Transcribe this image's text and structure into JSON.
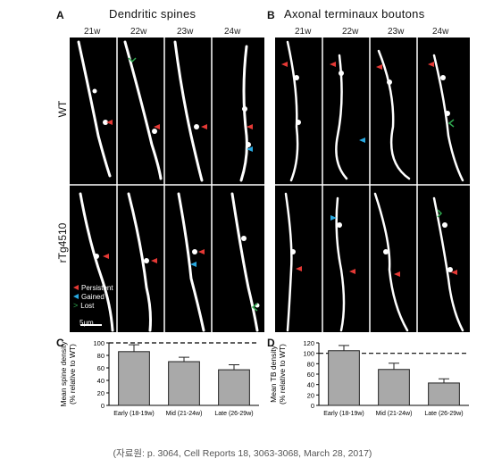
{
  "panels": {
    "A": {
      "letter": "A",
      "title": "Dendritic spines"
    },
    "B": {
      "letter": "B",
      "title": "Axonal terminaux boutons"
    },
    "C": {
      "letter": "C"
    },
    "D": {
      "letter": "D"
    }
  },
  "timepoints": [
    "21w",
    "22w",
    "23w",
    "24w"
  ],
  "rows": [
    "WT",
    "rTg4510"
  ],
  "legend": [
    {
      "label": "Persistent",
      "color": "#e53935",
      "shape": "filled-triangle"
    },
    {
      "label": "Gained",
      "color": "#29a8e0",
      "shape": "filled-triangle"
    },
    {
      "label": "Lost",
      "color": "#2fa84f",
      "shape": "open-chevron"
    }
  ],
  "scale_bar": "5μm",
  "chart_data": [
    {
      "type": "bar",
      "panel": "C",
      "categories": [
        "Early (18-19w)",
        "Mid (21-24w)",
        "Late (26-29w)"
      ],
      "values": [
        86,
        70,
        57
      ],
      "errors": [
        11,
        7,
        8
      ],
      "ylabel": "Mean spine density\n(% relative to WT)",
      "ylim": [
        0,
        100
      ],
      "yticks": [
        0,
        20,
        40,
        60,
        80,
        100
      ],
      "reference_line": 100,
      "bar_color": "#a9a9a9"
    },
    {
      "type": "bar",
      "panel": "D",
      "categories": [
        "Early (18-19w)",
        "Mid (21-24w)",
        "Late (26-29w)"
      ],
      "values": [
        105,
        69,
        43
      ],
      "errors": [
        10,
        12,
        8
      ],
      "ylabel": "Mean TB density\n(% relative to WT)",
      "ylim": [
        0,
        120
      ],
      "yticks": [
        0,
        20,
        40,
        60,
        80,
        100,
        120
      ],
      "reference_line": 100,
      "bar_color": "#a9a9a9"
    }
  ],
  "caption": "(자료원: p. 3064, Cell Reports 18, 3063-3068, March 28, 2017)"
}
